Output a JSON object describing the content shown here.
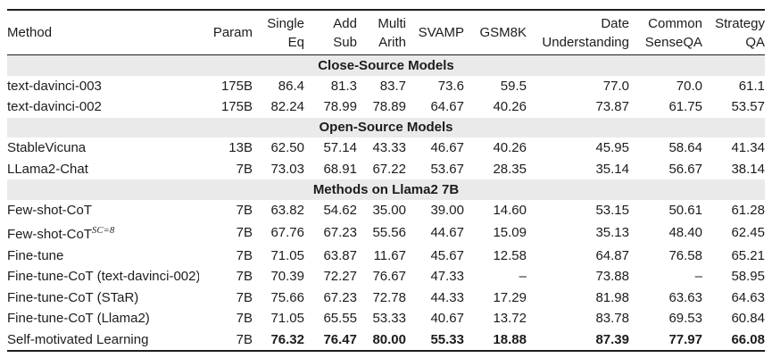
{
  "header": {
    "method": "Method",
    "param": "Param",
    "cols": [
      {
        "key": "single-eq",
        "lines": [
          "Single",
          "Eq"
        ]
      },
      {
        "key": "add-sub",
        "lines": [
          "Add",
          "Sub"
        ]
      },
      {
        "key": "multi-arith",
        "lines": [
          "Multi",
          "Arith"
        ]
      },
      {
        "key": "svamp",
        "lines": [
          "SVAMP"
        ]
      },
      {
        "key": "gsm8k",
        "lines": [
          "GSM8K"
        ]
      },
      {
        "key": "date-understanding",
        "lines": [
          "Date",
          "Understanding"
        ]
      },
      {
        "key": "common-senseqa",
        "lines": [
          "Common",
          "SenseQA"
        ]
      },
      {
        "key": "strategy-qa",
        "lines": [
          "Strategy",
          "QA"
        ]
      }
    ]
  },
  "colors": {
    "section_band": "#eaeaea",
    "rule": "#1f1f1f",
    "text": "#1c1c1c"
  },
  "sections": [
    {
      "title": "Close-Source Models",
      "rows": [
        {
          "method": "text-davinci-003",
          "param": "175B",
          "values": [
            "86.4",
            "81.3",
            "83.7",
            "73.6",
            "59.5",
            "77.0",
            "70.0",
            "61.1"
          ]
        },
        {
          "method": "text-davinci-002",
          "param": "175B",
          "values": [
            "82.24",
            "78.99",
            "78.89",
            "64.67",
            "40.26",
            "73.87",
            "61.75",
            "53.57"
          ]
        }
      ]
    },
    {
      "title": "Open-Source Models",
      "rows": [
        {
          "method": "StableVicuna",
          "param": "13B",
          "values": [
            "62.50",
            "57.14",
            "43.33",
            "46.67",
            "40.26",
            "45.95",
            "58.64",
            "41.34"
          ]
        },
        {
          "method": "LLama2-Chat",
          "param": "7B",
          "values": [
            "73.03",
            "68.91",
            "67.22",
            "53.67",
            "28.35",
            "35.14",
            "56.67",
            "38.14"
          ]
        }
      ]
    },
    {
      "title": "Methods on Llama2 7B",
      "rows": [
        {
          "method": "Few-shot-CoT",
          "param": "7B",
          "values": [
            "63.82",
            "54.62",
            "35.00",
            "39.00",
            "14.60",
            "53.15",
            "50.61",
            "61.28"
          ]
        },
        {
          "method": "Few-shot-CoT",
          "method_sup": "SC=8",
          "param": "7B",
          "values": [
            "67.76",
            "67.23",
            "55.56",
            "44.67",
            "15.09",
            "35.13",
            "48.40",
            "62.45"
          ]
        },
        {
          "method": "Fine-tune",
          "param": "7B",
          "values": [
            "71.05",
            "63.87",
            "11.67",
            "45.67",
            "12.58",
            "64.87",
            "76.58",
            "65.21"
          ]
        },
        {
          "method": "Fine-tune-CoT (text-davinci-002)",
          "param": "7B",
          "values": [
            "70.39",
            "72.27",
            "76.67",
            "47.33",
            "–",
            "73.88",
            "–",
            "58.95"
          ]
        },
        {
          "method": "Fine-tune-CoT (STaR)",
          "param": "7B",
          "values": [
            "75.66",
            "67.23",
            "72.78",
            "44.33",
            "17.29",
            "81.98",
            "63.63",
            "64.63"
          ]
        },
        {
          "method": "Fine-tune-CoT (Llama2)",
          "param": "7B",
          "values": [
            "71.05",
            "65.55",
            "53.33",
            "40.67",
            "13.72",
            "83.78",
            "69.53",
            "60.84"
          ]
        },
        {
          "method": "Self-motivated Learning",
          "param": "7B",
          "bold_values": true,
          "values": [
            "76.32",
            "76.47",
            "80.00",
            "55.33",
            "18.88",
            "87.39",
            "77.97",
            "66.08"
          ]
        }
      ]
    }
  ]
}
